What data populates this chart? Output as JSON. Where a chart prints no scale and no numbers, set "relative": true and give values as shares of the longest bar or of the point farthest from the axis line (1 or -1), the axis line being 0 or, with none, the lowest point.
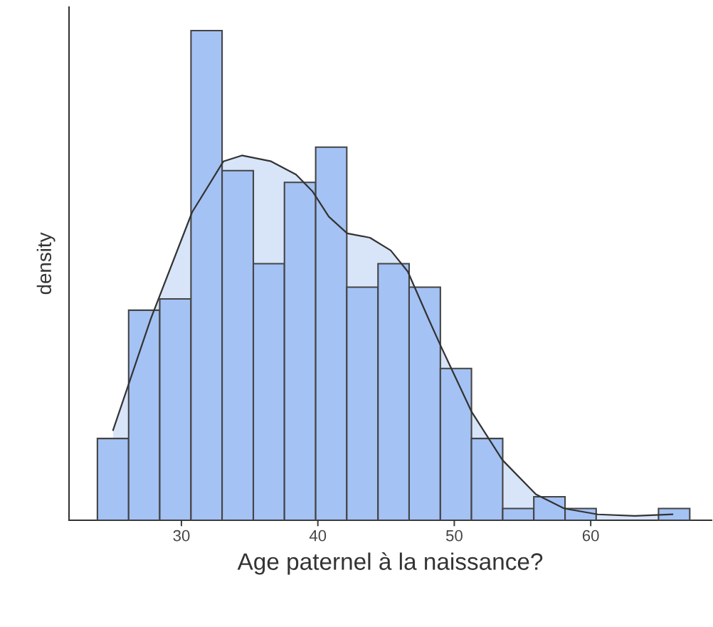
{
  "chart_data": {
    "type": "histogram",
    "relative": true,
    "xlabel": "Age paternel à la naissance?",
    "ylabel": "density",
    "xlim": [
      21.76,
      68.86
    ],
    "xticks": [
      30,
      40,
      50,
      60
    ],
    "grid": false,
    "legend": false,
    "tick_labels": "x",
    "bins": [
      23.84,
      26.13,
      28.41,
      30.7,
      32.98,
      35.27,
      37.55,
      39.84,
      42.12,
      44.41,
      46.69,
      48.98,
      51.26,
      53.55,
      55.83,
      58.12,
      60.4,
      62.69,
      64.97,
      67.26
    ],
    "values": [
      0.167,
      0.429,
      0.452,
      1,
      0.714,
      0.524,
      0.69,
      0.762,
      0.476,
      0.524,
      0.476,
      0.31,
      0.167,
      0.024,
      0.048,
      0.024,
      0,
      0,
      0.024
    ],
    "color": "#a4c2f4",
    "series": [
      {
        "type": "area",
        "color": "#d8e5f8",
        "x": [
          24.99,
          27.76,
          30.78,
          33.08,
          34.43,
          36.57,
          38.4,
          39.6,
          40.8,
          42.15,
          43.82,
          45.34,
          46.59,
          48.1,
          48.99,
          51.28,
          53.53,
          55.98,
          58.06,
          60.52,
          63.23,
          65.99
        ],
        "values": [
          0.184,
          0.412,
          0.629,
          0.733,
          0.745,
          0.733,
          0.706,
          0.672,
          0.62,
          0.586,
          0.577,
          0.551,
          0.508,
          0.412,
          0.357,
          0.221,
          0.123,
          0.053,
          0.024,
          0.012,
          0.009,
          0.012
        ]
      }
    ]
  }
}
